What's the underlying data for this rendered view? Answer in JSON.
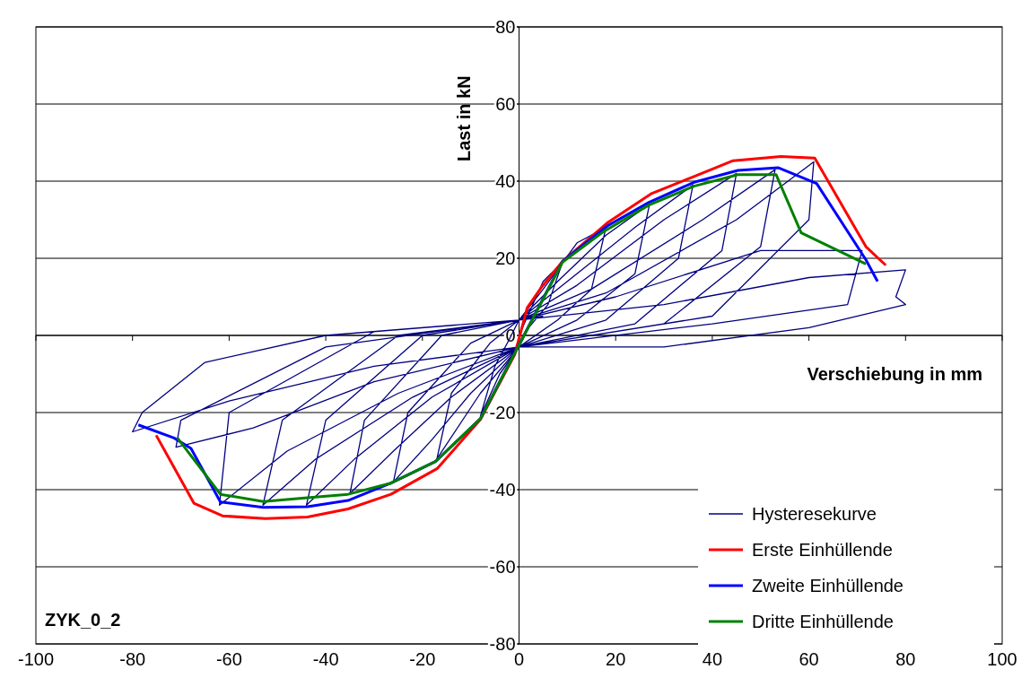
{
  "chart_data": {
    "type": "line",
    "xlabel": "Verschiebung in mm",
    "ylabel": "Last in kN",
    "annotations": [
      "ZYK_0_2"
    ],
    "xlim": [
      -100,
      100
    ],
    "xticks": [
      -100,
      -80,
      -60,
      -40,
      -20,
      0,
      20,
      40,
      60,
      80,
      100
    ],
    "ylim": [
      -80,
      80
    ],
    "yticks": [
      -80,
      -60,
      -40,
      -20,
      0,
      20,
      40,
      60,
      80
    ],
    "grid": "y",
    "legend": "bottom right",
    "marker": "none",
    "line_style": "solid",
    "series": [
      {
        "name": "Hysteresekurve",
        "color": "#000080",
        "x": [
          0,
          5,
          9,
          6,
          2,
          0,
          -4,
          -8,
          -5,
          -2,
          0,
          5,
          12,
          18,
          15,
          8,
          0,
          -8,
          -17,
          -14,
          -6,
          0,
          8,
          18,
          27,
          24,
          12,
          0,
          -10,
          -18,
          -26,
          -23,
          -10,
          0,
          10,
          24,
          36,
          33,
          18,
          0,
          -14,
          -26,
          -35,
          -32,
          -16,
          0,
          12,
          30,
          45,
          42,
          24,
          0,
          -18,
          -34,
          -44,
          -40,
          -20,
          0,
          15,
          38,
          53,
          50,
          30,
          0,
          -22,
          -42,
          -53,
          -49,
          -25,
          0,
          18,
          45,
          61,
          60,
          40,
          0,
          -25,
          -48,
          -62,
          -60,
          -30,
          0,
          20,
          50,
          71,
          68,
          40,
          0,
          -30,
          -55,
          -71,
          -70,
          -40,
          0,
          30,
          60,
          80,
          78,
          80,
          60,
          30,
          0,
          -30,
          -60,
          -80,
          -78,
          -65,
          -40,
          0,
          5
        ],
        "values": [
          0,
          14,
          19,
          8,
          2,
          -3,
          -10,
          -21,
          -8,
          -1,
          4,
          12,
          24,
          28,
          12,
          4,
          -3,
          -15,
          -32,
          -15,
          -2,
          4,
          14,
          26,
          34,
          16,
          4,
          -3,
          -15,
          -27,
          -38,
          -20,
          -2,
          4,
          14,
          28,
          39,
          20,
          4,
          -3,
          -16,
          -30,
          -41,
          -22,
          0,
          4,
          13,
          30,
          42,
          22,
          3,
          -3,
          -16,
          -32,
          -44,
          -22,
          0,
          4,
          12,
          30,
          43,
          23,
          3,
          -3,
          -16,
          -32,
          -44,
          -22,
          0,
          4,
          11,
          30,
          45,
          30,
          5,
          -3,
          -15,
          -30,
          -44,
          -20,
          1,
          4,
          10,
          22,
          22,
          8,
          3,
          -3,
          -12,
          -24,
          -29,
          -22,
          -3,
          4,
          8,
          15,
          17,
          10,
          8,
          2,
          -3,
          -3,
          -8,
          -17,
          -25,
          -20,
          -7,
          0,
          4,
          5
        ]
      },
      {
        "name": "Erste Einhüllende",
        "color": "#ff0000",
        "x": [
          -75.1,
          -67.3,
          -61.4,
          -52.5,
          -43.8,
          -35.4,
          -26.5,
          -16.9,
          -8,
          -0.9,
          1.7,
          4.6,
          9,
          18.4,
          27.3,
          36.2,
          44.3,
          54.2,
          61.2,
          71.8,
          75.9
        ],
        "values": [
          -25.9,
          -43.5,
          -46.8,
          -47.5,
          -47.1,
          -45,
          -41.2,
          -34.5,
          -21.8,
          -5,
          7.2,
          12.4,
          19.2,
          29.3,
          36.7,
          41.2,
          45.3,
          46.4,
          46,
          23,
          18.2
        ]
      },
      {
        "name": "Zweite Einhüllende",
        "color": "#0000ff",
        "x": [
          -78.8,
          -71.4,
          -67.9,
          -61.8,
          -52.9,
          -43.8,
          -35.4,
          -26.5,
          -17.3,
          -8,
          9,
          18.4,
          26.9,
          36.2,
          45.3,
          53.6,
          61.6,
          71.8,
          74.2
        ],
        "values": [
          -23.2,
          -26.6,
          -29.3,
          -43.2,
          -44.6,
          -44.4,
          -42.8,
          -38.3,
          -32.7,
          -21.6,
          19.2,
          28.5,
          34.5,
          39.7,
          42.8,
          43.5,
          39.4,
          19.6,
          14
        ]
      },
      {
        "name": "Dritte Einhüllende",
        "color": "#008000",
        "x": [
          -70.7,
          -61.8,
          -52.9,
          -43.8,
          -35.4,
          -26.5,
          -17.3,
          -8,
          9,
          17.6,
          26.9,
          36.2,
          45.3,
          53.2,
          58.4,
          71.8
        ],
        "values": [
          -26.6,
          -41.2,
          -43.1,
          -42.1,
          -41.2,
          -38.3,
          -32.7,
          -21.6,
          19,
          27,
          33.8,
          38.7,
          41.7,
          41.7,
          26.6,
          18.5
        ]
      }
    ]
  }
}
